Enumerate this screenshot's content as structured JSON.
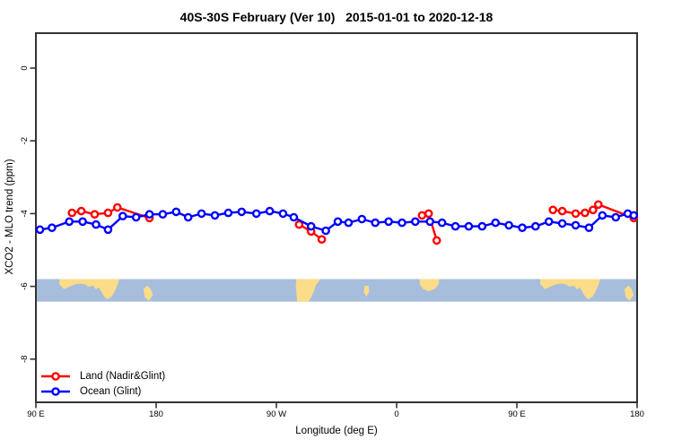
{
  "chart_data": {
    "type": "line",
    "title": "40S-30S February (Ver 10)   2015-01-01 to 2020-12-18",
    "xlabel": "Longitude (deg E)",
    "ylabel": "XCO2 - MLO trend (ppm)",
    "grid": "off",
    "x_axis": {
      "description": "longitude wrapped, 450 degrees total starting at 90E",
      "range_deg": [
        0,
        450
      ],
      "ticks": [
        {
          "deg": 0,
          "label": "90 E"
        },
        {
          "deg": 90,
          "label": "180"
        },
        {
          "deg": 180,
          "label": "90 W"
        },
        {
          "deg": 270,
          "label": "0"
        },
        {
          "deg": 360,
          "label": "90 E"
        },
        {
          "deg": 450,
          "label": "180"
        }
      ]
    },
    "y_axis": {
      "range_ppm": [
        0.96,
        -9.2
      ],
      "ticks": [
        {
          "value": 0,
          "label": "0"
        },
        {
          "value": -2,
          "label": "-2"
        },
        {
          "value": -4,
          "label": "-4"
        },
        {
          "value": -6,
          "label": "-6"
        },
        {
          "value": -8,
          "label": "-8"
        }
      ]
    },
    "legend": {
      "position": "bottom-left"
    },
    "series": [
      {
        "name": "Land (Nadir&Glint)",
        "color": "#FF0000",
        "marker": "open-circle",
        "segments": [
          [
            [
              27,
              -3.98
            ],
            [
              34,
              -3.93
            ],
            [
              44,
              -4.02
            ],
            [
              54,
              -3.98
            ],
            [
              61,
              -3.83
            ],
            [
              85,
              -4.12
            ]
          ],
          [
            [
              197,
              -4.3
            ],
            [
              206,
              -4.49
            ],
            [
              214,
              -4.71
            ]
          ],
          [
            [
              289,
              -4.05
            ],
            [
              294,
              -4.0
            ],
            [
              300,
              -4.74
            ]
          ],
          [
            [
              387,
              -3.9
            ],
            [
              394,
              -3.93
            ],
            [
              404,
              -4.0
            ],
            [
              411,
              -3.98
            ],
            [
              417,
              -3.9
            ],
            [
              421,
              -3.75
            ],
            [
              447.5,
              -4.12
            ]
          ]
        ]
      },
      {
        "name": "Ocean (Glint)",
        "color": "#0000FF",
        "marker": "open-circle",
        "segments": [
          [
            [
              3,
              -4.44
            ],
            [
              12,
              -4.39
            ],
            [
              25,
              -4.22
            ],
            [
              35,
              -4.22
            ],
            [
              45,
              -4.3
            ],
            [
              54,
              -4.44
            ],
            [
              65,
              -4.07
            ],
            [
              75,
              -4.1
            ],
            [
              85,
              -4.02
            ],
            [
              95,
              -4.02
            ],
            [
              105,
              -3.95
            ],
            [
              114,
              -4.1
            ],
            [
              124,
              -4.0
            ],
            [
              134,
              -4.05
            ],
            [
              144,
              -3.98
            ],
            [
              154,
              -3.95
            ],
            [
              165,
              -4.0
            ],
            [
              175,
              -3.93
            ],
            [
              185,
              -4.0
            ],
            [
              193,
              -4.1
            ],
            [
              206,
              -4.35
            ],
            [
              217,
              -4.47
            ],
            [
              226,
              -4.22
            ],
            [
              234,
              -4.25
            ],
            [
              244,
              -4.15
            ],
            [
              254,
              -4.25
            ],
            [
              264,
              -4.22
            ],
            [
              274,
              -4.25
            ],
            [
              284,
              -4.22
            ],
            [
              295,
              -4.22
            ],
            [
              304,
              -4.25
            ],
            [
              314,
              -4.35
            ],
            [
              324,
              -4.35
            ],
            [
              334,
              -4.35
            ],
            [
              344,
              -4.25
            ],
            [
              354,
              -4.32
            ],
            [
              364,
              -4.39
            ],
            [
              374,
              -4.35
            ],
            [
              384,
              -4.22
            ],
            [
              394,
              -4.27
            ],
            [
              404,
              -4.32
            ],
            [
              414,
              -4.39
            ],
            [
              424,
              -4.05
            ],
            [
              434,
              -4.1
            ],
            [
              443,
              -4.0
            ],
            [
              447.5,
              -4.05
            ]
          ]
        ]
      }
    ],
    "map_strip": {
      "description": "40S-30S latitude world-map band drawn across the plot",
      "top_ppm": -5.8,
      "bottom_ppm": -6.42,
      "ocean_color": "#A7BDDC",
      "land_color": "#FBDC88",
      "land_polygons": [
        {
          "name": "australia",
          "points": [
            [
              17.5,
              0
            ],
            [
              17.5,
              0.22
            ],
            [
              21,
              0.45
            ],
            [
              25,
              0.34
            ],
            [
              30,
              0.22
            ],
            [
              33.5,
              0.2
            ],
            [
              37,
              0.24
            ],
            [
              39,
              0.34
            ],
            [
              43,
              0.3
            ],
            [
              45,
              0.46
            ],
            [
              47,
              0.36
            ],
            [
              49,
              0.56
            ],
            [
              51,
              0.76
            ],
            [
              53.5,
              0.9
            ],
            [
              57,
              0.76
            ],
            [
              59,
              0.55
            ],
            [
              61,
              0.28
            ],
            [
              62.5,
              0
            ]
          ]
        },
        {
          "name": "new-zealand",
          "points": [
            [
              80.5,
              0.45
            ],
            [
              83.5,
              0.28
            ],
            [
              86,
              0.44
            ],
            [
              87.5,
              0.7
            ],
            [
              84.5,
              0.96
            ],
            [
              81.5,
              0.8
            ]
          ]
        },
        {
          "name": "south-america",
          "points": [
            [
              195,
              0
            ],
            [
              213,
              0
            ],
            [
              209.5,
              0.28
            ],
            [
              208,
              0.56
            ],
            [
              206,
              0.8
            ],
            [
              204,
              1.0
            ],
            [
              195.5,
              1.0
            ],
            [
              194.5,
              0.28
            ]
          ]
        },
        {
          "name": "atlantic-island",
          "points": [
            [
              246,
              0.3
            ],
            [
              249,
              0.3
            ],
            [
              249.5,
              0.55
            ],
            [
              247.5,
              0.78
            ],
            [
              245.5,
              0.6
            ]
          ]
        },
        {
          "name": "africa",
          "points": [
            [
              287,
              0
            ],
            [
              302,
              0
            ],
            [
              301.5,
              0.22
            ],
            [
              299,
              0.42
            ],
            [
              294,
              0.54
            ],
            [
              290,
              0.45
            ],
            [
              287.5,
              0.25
            ]
          ]
        },
        {
          "name": "australia-2",
          "points": [
            [
              377.5,
              0
            ],
            [
              377.5,
              0.22
            ],
            [
              381,
              0.45
            ],
            [
              385,
              0.34
            ],
            [
              390,
              0.22
            ],
            [
              393.5,
              0.2
            ],
            [
              397,
              0.24
            ],
            [
              399,
              0.34
            ],
            [
              403,
              0.3
            ],
            [
              405,
              0.46
            ],
            [
              407,
              0.36
            ],
            [
              409,
              0.56
            ],
            [
              411,
              0.76
            ],
            [
              413.5,
              0.9
            ],
            [
              417,
              0.76
            ],
            [
              419,
              0.55
            ],
            [
              421,
              0.28
            ],
            [
              422.5,
              0
            ]
          ]
        },
        {
          "name": "new-zealand-2",
          "points": [
            [
              440.5,
              0.45
            ],
            [
              443.5,
              0.28
            ],
            [
              446,
              0.44
            ],
            [
              447.5,
              0.7
            ],
            [
              444.5,
              0.96
            ],
            [
              441.5,
              0.8
            ]
          ]
        }
      ]
    },
    "frame_color": "#333333"
  }
}
